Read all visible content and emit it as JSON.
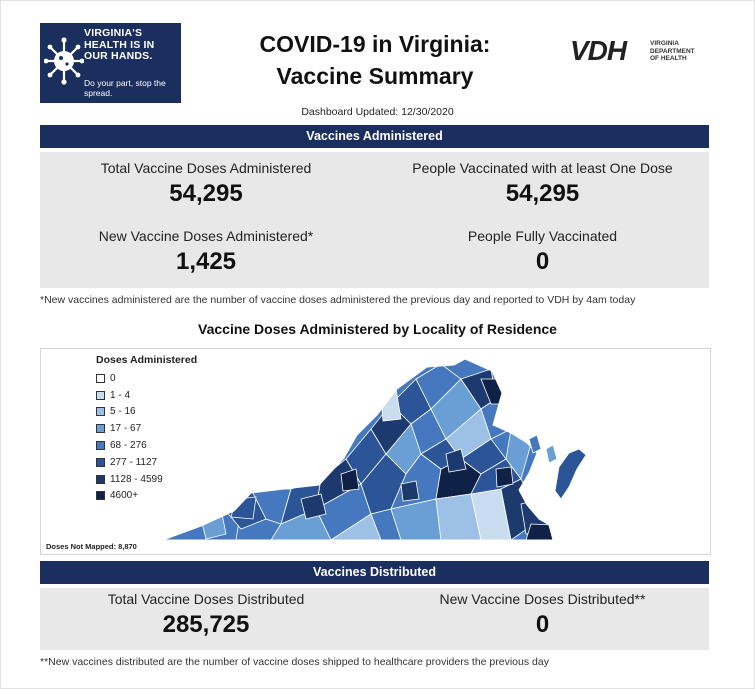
{
  "header": {
    "logo_text": "VIRGINIA'S HEALTH IS IN OUR HANDS.",
    "logo_sub": "Do your part, stop the spread.",
    "title_line1": "COVID-19 in Virginia:",
    "title_line2": "Vaccine Summary",
    "vdh_letters": "VDH",
    "vdh_sub": "VIRGINIA DEPARTMENT OF HEALTH",
    "updated": "Dashboard Updated: 12/30/2020"
  },
  "administered": {
    "band": "Vaccines Administered",
    "total_label": "Total Vaccine Doses Administered",
    "total_value": "54,295",
    "people_label": "People Vaccinated with at least One Dose",
    "people_value": "54,295",
    "new_label": "New Vaccine Doses Administered*",
    "new_value": "1,425",
    "full_label": "People Fully Vaccinated",
    "full_value": "0",
    "note": "*New vaccines administered are the number of vaccine doses administered the previous day and reported to VDH by 4am today"
  },
  "map": {
    "title": "Vaccine Doses Administered by Locality of Residence",
    "legend_title": "Doses Administered",
    "legend": [
      {
        "label": "0",
        "color": "#ffffff"
      },
      {
        "label": "1 - 4",
        "color": "#c9dcf0"
      },
      {
        "label": "5 - 16",
        "color": "#9cc0e6"
      },
      {
        "label": "17 - 67",
        "color": "#6a9fd6"
      },
      {
        "label": "68 - 276",
        "color": "#4678bf"
      },
      {
        "label": "277 - 1127",
        "color": "#2b5597"
      },
      {
        "label": "1128 - 4599",
        "color": "#1d3a6f"
      },
      {
        "label": "4600+",
        "color": "#0f2146"
      }
    ],
    "not_mapped": "Doses Not Mapped: 8,870"
  },
  "distributed": {
    "band": "Vaccines Distributed",
    "total_label": "Total Vaccine Doses Distributed",
    "total_value": "285,725",
    "new_label": "New Vaccine Doses Distributed**",
    "new_value": "0",
    "note": "**New vaccines distributed are the number of vaccine doses shipped to healthcare providers the previous day"
  }
}
